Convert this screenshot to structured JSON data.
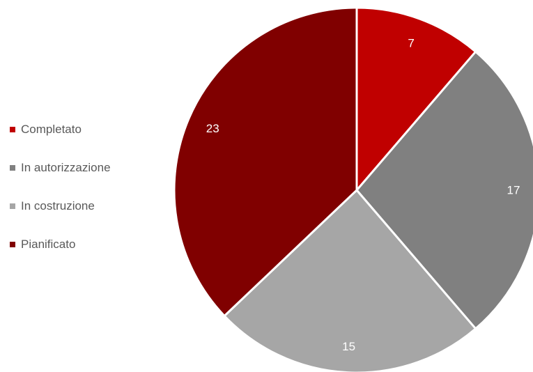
{
  "chart_data": {
    "type": "pie",
    "categories": [
      "Completato",
      "In autorizzazione",
      "In costruzione",
      "Pianificato"
    ],
    "values": [
      7,
      17,
      15,
      23
    ],
    "colors": [
      "#c00000",
      "#808080",
      "#a6a6a6",
      "#800000"
    ],
    "start_angle_deg": 0,
    "direction": "clockwise",
    "slice_border_color": "#ffffff",
    "data_label_color": "#ffffff",
    "legend_text_color": "#595959",
    "legend_position": "left"
  }
}
